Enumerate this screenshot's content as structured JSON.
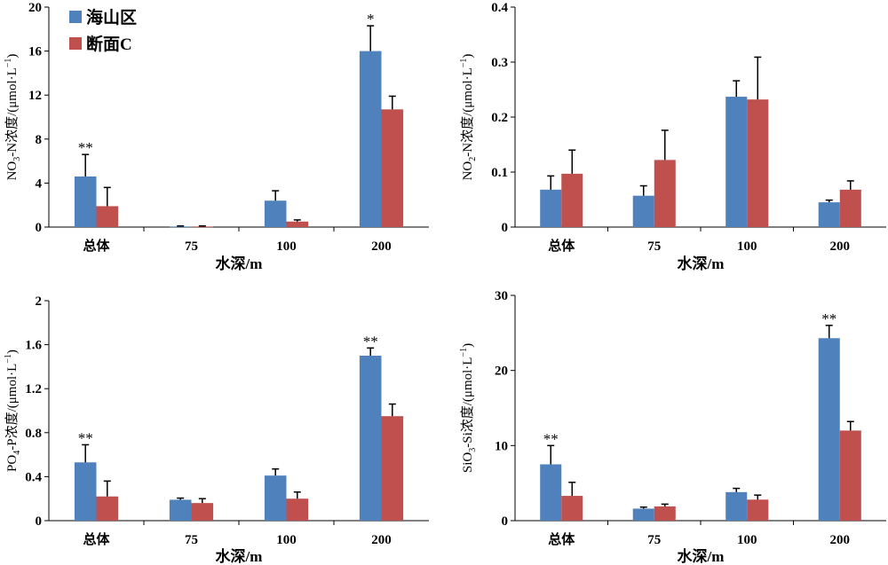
{
  "legend": [
    {
      "name": "海山区",
      "color": "#4f81bd"
    },
    {
      "name": "断面C",
      "color": "#c0504d"
    }
  ],
  "chart_data": [
    {
      "type": "bar",
      "categories": [
        "总体",
        "75",
        "100",
        "200"
      ],
      "xlabel": "水深/m",
      "ylabel_main": "NO",
      "ylabel_sub": "3",
      "ylabel_rest": "-N浓度/(μmol·L",
      "ylabel_sup": "−1",
      "ylabel_end": ")",
      "ylim": [
        0,
        20
      ],
      "ticks": [
        "0",
        "4",
        "8",
        "12",
        "16",
        "20"
      ],
      "series": [
        {
          "name": "海山区",
          "values": [
            4.6,
            0.05,
            2.4,
            16.0
          ],
          "errors": [
            2.0,
            0.05,
            0.9,
            2.3
          ]
        },
        {
          "name": "断面C",
          "values": [
            1.9,
            0.05,
            0.5,
            10.7
          ],
          "errors": [
            1.7,
            0.05,
            0.15,
            1.2
          ]
        }
      ],
      "annotations": [
        "**",
        "",
        "",
        "*"
      ]
    },
    {
      "type": "bar",
      "categories": [
        "总体",
        "75",
        "100",
        "200"
      ],
      "xlabel": "水深/m",
      "ylabel_main": "NO",
      "ylabel_sub": "2",
      "ylabel_rest": "-N浓度/(μmol·L",
      "ylabel_sup": "−1",
      "ylabel_end": ")",
      "ylim": [
        0,
        0.4
      ],
      "ticks": [
        "0",
        "0.1",
        "0.2",
        "0.3",
        "0.4"
      ],
      "series": [
        {
          "name": "海山区",
          "values": [
            0.068,
            0.057,
            0.237,
            0.045
          ],
          "errors": [
            0.025,
            0.018,
            0.029,
            0.004
          ]
        },
        {
          "name": "断面C",
          "values": [
            0.097,
            0.122,
            0.232,
            0.068
          ],
          "errors": [
            0.043,
            0.054,
            0.077,
            0.016
          ]
        }
      ],
      "annotations": [
        "",
        "",
        "",
        ""
      ]
    },
    {
      "type": "bar",
      "categories": [
        "总体",
        "75",
        "100",
        "200"
      ],
      "xlabel": "水深/m",
      "ylabel_main": "PO",
      "ylabel_sub": "4",
      "ylabel_rest": "-P浓度/(μmol·L",
      "ylabel_sup": "−1",
      "ylabel_end": ")",
      "ylim": [
        0,
        2
      ],
      "ticks": [
        "0",
        "0.4",
        "0.8",
        "1.2",
        "1.6",
        "2"
      ],
      "series": [
        {
          "name": "海山区",
          "values": [
            0.53,
            0.19,
            0.41,
            1.5
          ],
          "errors": [
            0.16,
            0.015,
            0.06,
            0.07
          ]
        },
        {
          "name": "断面C",
          "values": [
            0.22,
            0.16,
            0.2,
            0.95
          ],
          "errors": [
            0.14,
            0.04,
            0.06,
            0.11
          ]
        }
      ],
      "annotations": [
        "**",
        "",
        "",
        "**"
      ]
    },
    {
      "type": "bar",
      "categories": [
        "总体",
        "75",
        "100",
        "200"
      ],
      "xlabel": "水深/m",
      "ylabel_main": "SiO",
      "ylabel_sub": "3",
      "ylabel_rest": "-Si浓度/(μmol·L",
      "ylabel_sup": "−1",
      "ylabel_end": ")",
      "ylim": [
        0,
        30
      ],
      "ticks": [
        "0",
        "10",
        "20",
        "30"
      ],
      "series": [
        {
          "name": "海山区",
          "values": [
            7.5,
            1.6,
            3.8,
            24.3
          ],
          "errors": [
            2.5,
            0.2,
            0.5,
            1.7
          ]
        },
        {
          "name": "断面C",
          "values": [
            3.3,
            1.9,
            2.8,
            12.0
          ],
          "errors": [
            1.8,
            0.3,
            0.6,
            1.2
          ]
        }
      ],
      "annotations": [
        "**",
        "",
        "",
        "**"
      ]
    }
  ]
}
